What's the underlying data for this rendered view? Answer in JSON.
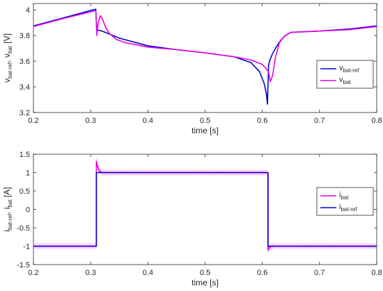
{
  "chart_data": [
    {
      "type": "line",
      "xlabel": "time [s]",
      "ylabel": {
        "main1": "v",
        "sub1": "bat-ref",
        "sep": ", ",
        "main2": "v",
        "sub2": "bat",
        "unit": " [V]"
      },
      "xlim": [
        0.2,
        0.8
      ],
      "ylim": [
        3.2,
        4.05
      ],
      "xticks": [
        0.2,
        0.3,
        0.4,
        0.5,
        0.6,
        0.7,
        0.8
      ],
      "xtick_labels": [
        "0.2",
        "0.3",
        "0.4",
        "0.5",
        "0.6",
        "0.7",
        "0.8"
      ],
      "yticks": [
        3.2,
        3.4,
        3.6,
        3.8,
        4.0
      ],
      "ytick_labels": [
        "3.2",
        "3.4",
        "3.6",
        "3.8",
        "4"
      ],
      "legend_position": "right",
      "series": [
        {
          "legend_main": "v",
          "legend_sub": "bat-ref",
          "color": "#0000CC",
          "x": [
            0.2,
            0.25,
            0.3,
            0.309,
            0.3105,
            0.32,
            0.35,
            0.4,
            0.45,
            0.5,
            0.55,
            0.58,
            0.595,
            0.603,
            0.607,
            0.609,
            0.611,
            0.613,
            0.618,
            0.625,
            0.63,
            0.64,
            0.65,
            0.7,
            0.75,
            0.8
          ],
          "y": [
            3.875,
            3.935,
            3.995,
            4.005,
            3.845,
            3.835,
            3.78,
            3.72,
            3.69,
            3.665,
            3.635,
            3.59,
            3.52,
            3.43,
            3.35,
            3.265,
            3.57,
            3.605,
            3.66,
            3.715,
            3.75,
            3.8,
            3.825,
            3.835,
            3.85,
            3.875
          ]
        },
        {
          "legend_main": "v",
          "legend_sub": "bat",
          "color": "#E600E6",
          "x": [
            0.2,
            0.25,
            0.3,
            0.309,
            0.311,
            0.313,
            0.317,
            0.321,
            0.326,
            0.333,
            0.345,
            0.36,
            0.4,
            0.45,
            0.5,
            0.55,
            0.58,
            0.6,
            0.606,
            0.609,
            0.611,
            0.614,
            0.618,
            0.623,
            0.63,
            0.64,
            0.65,
            0.7,
            0.75,
            0.8
          ],
          "y": [
            3.87,
            3.93,
            3.985,
            3.995,
            3.8,
            3.9,
            3.955,
            3.925,
            3.865,
            3.815,
            3.77,
            3.745,
            3.71,
            3.69,
            3.665,
            3.635,
            3.61,
            3.575,
            3.545,
            3.53,
            3.515,
            3.44,
            3.49,
            3.63,
            3.745,
            3.8,
            3.825,
            3.835,
            3.845,
            3.87
          ]
        }
      ]
    },
    {
      "type": "line",
      "xlabel": "time [s]",
      "ylabel": {
        "main1": "i",
        "sub1": "bat-ref",
        "sep": ", ",
        "main2": "i",
        "sub2": "bat",
        "unit": " [A]"
      },
      "xlim": [
        0.2,
        0.8
      ],
      "ylim": [
        -1.5,
        1.5
      ],
      "xticks": [
        0.2,
        0.3,
        0.4,
        0.5,
        0.6,
        0.7,
        0.8
      ],
      "xtick_labels": [
        "0.2",
        "0.3",
        "0.4",
        "0.5",
        "0.6",
        "0.7",
        "0.8"
      ],
      "yticks": [
        -1.5,
        -1,
        -0.5,
        0,
        0.5,
        1,
        1.5
      ],
      "ytick_labels": [
        "-1.5",
        "-1",
        "-0.5",
        "0",
        "0.5",
        "1",
        "1.5"
      ],
      "legend_position": "right",
      "series": [
        {
          "legend_main": "i",
          "legend_sub": "bat",
          "color": "#E600E6",
          "ripple": true,
          "x": [
            0.2,
            0.31,
            0.31,
            0.312,
            0.315,
            0.32,
            0.35,
            0.61,
            0.61,
            0.612,
            0.616,
            0.62,
            0.65,
            0.8
          ],
          "y": [
            -1.0,
            -1.0,
            1.3,
            1.18,
            1.05,
            1.0,
            1.0,
            1.0,
            -1.1,
            -1.05,
            -1.0,
            -1.0,
            -1.0,
            -1.0
          ]
        },
        {
          "legend_main": "i",
          "legend_sub": "bat-ref",
          "color": "#0000CC",
          "x": [
            0.2,
            0.31,
            0.31,
            0.32,
            0.61,
            0.61,
            0.8
          ],
          "y": [
            -1.0,
            -1.0,
            1.0,
            1.0,
            1.0,
            -1.0,
            -1.0
          ]
        }
      ]
    }
  ]
}
